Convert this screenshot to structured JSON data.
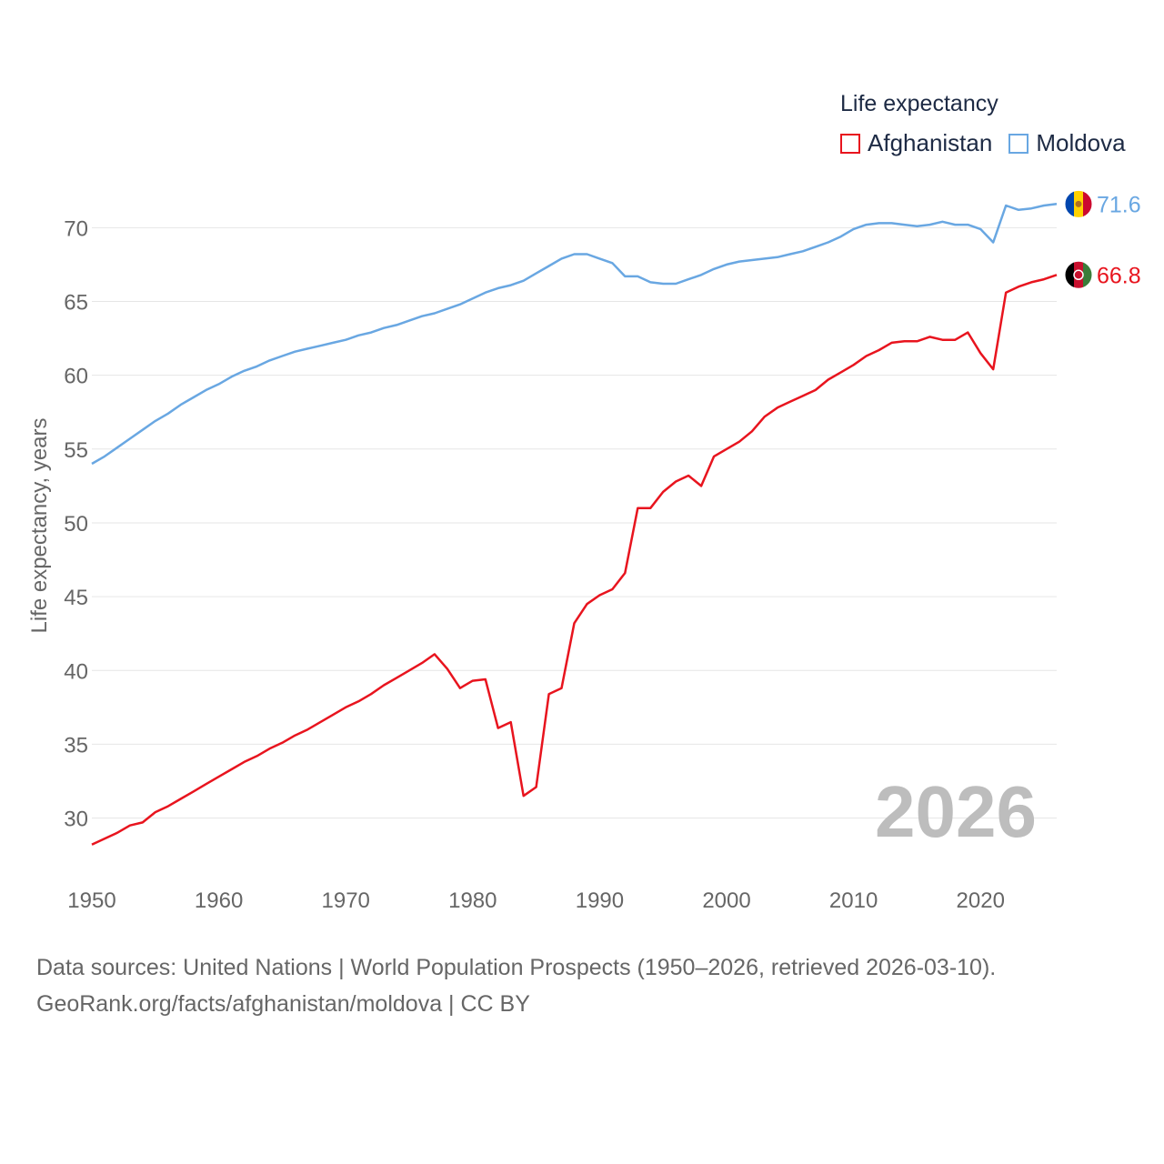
{
  "legend": {
    "title": "Life expectancy",
    "items": [
      {
        "label": "Afghanistan",
        "color": "#e8141e"
      },
      {
        "label": "Moldova",
        "color": "#69a7e2"
      }
    ]
  },
  "footer": {
    "line1": "Data sources: United Nations | World Population Prospects (1950–2026, retrieved 2026-03-10).",
    "line2": "GeoRank.org/facts/afghanistan/moldova | CC BY"
  },
  "chart_data": {
    "type": "line",
    "title": "Life expectancy",
    "xlabel": "",
    "ylabel": "Life expectancy, years",
    "year_label": "2026",
    "xlim": [
      1950,
      2026
    ],
    "ylim": [
      26.4,
      73.1
    ],
    "xticks": [
      1950,
      1960,
      1970,
      1980,
      1990,
      2000,
      2010,
      2020
    ],
    "yticks": [
      30,
      35,
      40,
      45,
      50,
      55,
      60,
      65,
      70
    ],
    "grid": true,
    "x": [
      1950,
      1951,
      1952,
      1953,
      1954,
      1955,
      1956,
      1957,
      1958,
      1959,
      1960,
      1961,
      1962,
      1963,
      1964,
      1965,
      1966,
      1967,
      1968,
      1969,
      1970,
      1971,
      1972,
      1973,
      1974,
      1975,
      1976,
      1977,
      1978,
      1979,
      1980,
      1981,
      1982,
      1983,
      1984,
      1985,
      1986,
      1987,
      1988,
      1989,
      1990,
      1991,
      1992,
      1993,
      1994,
      1995,
      1996,
      1997,
      1998,
      1999,
      2000,
      2001,
      2002,
      2003,
      2004,
      2005,
      2006,
      2007,
      2008,
      2009,
      2010,
      2011,
      2012,
      2013,
      2014,
      2015,
      2016,
      2017,
      2018,
      2019,
      2020,
      2021,
      2022,
      2023,
      2024,
      2025,
      2026
    ],
    "series": [
      {
        "name": "Afghanistan",
        "color": "#e8141e",
        "end_label": "66.8",
        "values": [
          28.2,
          28.6,
          29.0,
          29.5,
          29.7,
          30.4,
          30.8,
          31.3,
          31.8,
          32.3,
          32.8,
          33.3,
          33.8,
          34.2,
          34.7,
          35.1,
          35.6,
          36.0,
          36.5,
          37.0,
          37.5,
          37.9,
          38.4,
          39.0,
          39.5,
          40.0,
          40.5,
          41.1,
          40.1,
          38.8,
          39.3,
          39.4,
          36.1,
          36.5,
          31.5,
          32.1,
          38.4,
          38.8,
          43.2,
          44.5,
          45.1,
          45.5,
          46.6,
          51.0,
          51.0,
          52.1,
          52.8,
          53.2,
          52.5,
          54.5,
          55.0,
          55.5,
          56.2,
          57.2,
          57.8,
          58.2,
          58.6,
          59.0,
          59.7,
          60.2,
          60.7,
          61.3,
          61.7,
          62.2,
          62.3,
          62.3,
          62.6,
          62.4,
          62.4,
          62.9,
          61.5,
          60.4,
          65.6,
          66.0,
          66.3,
          66.5,
          66.8
        ]
      },
      {
        "name": "Moldova",
        "color": "#69a7e2",
        "end_label": "71.6",
        "values": [
          54.0,
          54.5,
          55.1,
          55.7,
          56.3,
          56.9,
          57.4,
          58.0,
          58.5,
          59.0,
          59.4,
          59.9,
          60.3,
          60.6,
          61.0,
          61.3,
          61.6,
          61.8,
          62.0,
          62.2,
          62.4,
          62.7,
          62.9,
          63.2,
          63.4,
          63.7,
          64.0,
          64.2,
          64.5,
          64.8,
          65.2,
          65.6,
          65.9,
          66.1,
          66.4,
          66.9,
          67.4,
          67.9,
          68.2,
          68.2,
          67.9,
          67.6,
          66.7,
          66.7,
          66.3,
          66.2,
          66.2,
          66.5,
          66.8,
          67.2,
          67.5,
          67.7,
          67.8,
          67.9,
          68.0,
          68.2,
          68.4,
          68.7,
          69.0,
          69.4,
          69.9,
          70.2,
          70.3,
          70.3,
          70.2,
          70.1,
          70.2,
          70.4,
          70.2,
          70.2,
          69.9,
          69.0,
          71.5,
          71.2,
          71.3,
          71.5,
          71.6
        ]
      }
    ]
  }
}
